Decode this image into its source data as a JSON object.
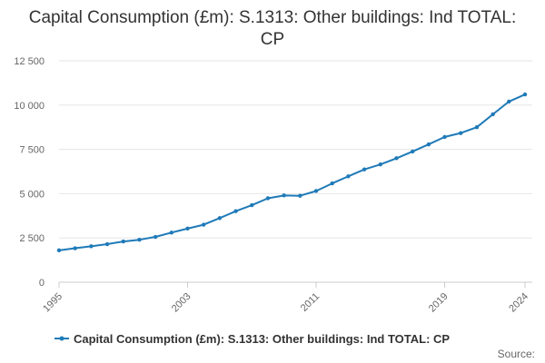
{
  "chart_data": {
    "type": "line",
    "title": "Capital Consumption (£m): S.1313: Other buildings: Ind TOTAL: CP",
    "xlabel": "",
    "ylabel": "",
    "x": [
      1995,
      1996,
      1997,
      1998,
      1999,
      2000,
      2001,
      2002,
      2003,
      2004,
      2005,
      2006,
      2007,
      2008,
      2009,
      2010,
      2011,
      2012,
      2013,
      2014,
      2015,
      2016,
      2017,
      2018,
      2019,
      2020,
      2021,
      2022,
      2023,
      2024
    ],
    "series": [
      {
        "name": "Capital Consumption (£m): S.1313: Other buildings: Ind TOTAL: CP",
        "color": "#1f7ab8",
        "values": [
          1800,
          1920,
          2030,
          2150,
          2300,
          2400,
          2560,
          2800,
          3030,
          3250,
          3620,
          4010,
          4350,
          4740,
          4900,
          4880,
          5150,
          5580,
          5980,
          6370,
          6650,
          7000,
          7380,
          7780,
          8200,
          8420,
          8750,
          9480,
          10200,
          10600
        ]
      }
    ],
    "ylim": [
      0,
      12500
    ],
    "yticks": [
      0,
      2500,
      5000,
      7500,
      10000,
      12500
    ],
    "ytick_labels": [
      "0",
      "2 500",
      "5 000",
      "7 500",
      "10 000",
      "12 500"
    ],
    "xticks": [
      1995,
      2003,
      2011,
      2019,
      2024
    ],
    "xtick_labels": [
      "1995",
      "2003",
      "2011",
      "2019",
      "2024"
    ],
    "grid": true,
    "legend_position": "bottom"
  },
  "source_label": "Source:"
}
